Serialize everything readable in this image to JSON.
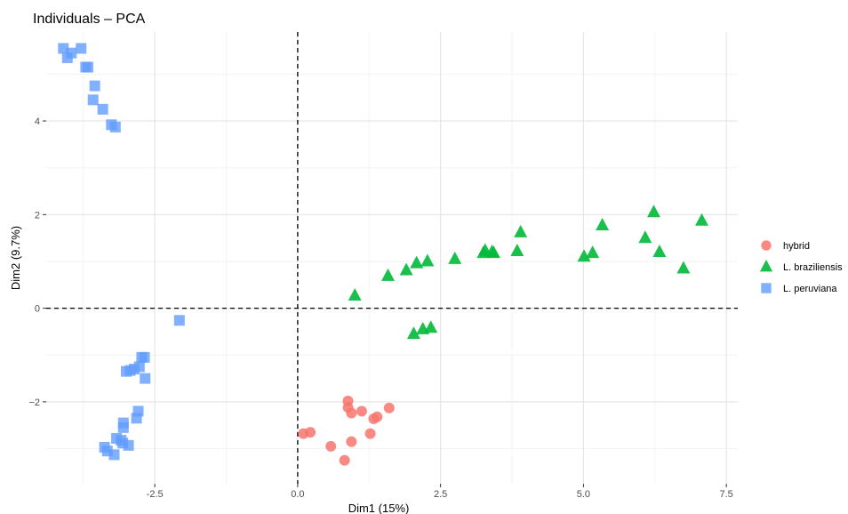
{
  "chart_data": {
    "type": "scatter",
    "title": "Individuals – PCA",
    "xlabel": "Dim1 (15%)",
    "ylabel": "Dim2 (9.7%)",
    "xlim": [
      -4.4,
      7.7
    ],
    "ylim": [
      -3.75,
      5.9
    ],
    "x_ticks": [
      0.0,
      2.5,
      5.0,
      7.5
    ],
    "x_tick_labels": [
      "0.0",
      "2.5",
      "5.0",
      "7.5"
    ],
    "extra_x_tick": {
      "value": -2.5,
      "label": "-2.5"
    },
    "y_ticks": [
      -2,
      0,
      2,
      4
    ],
    "y_tick_labels": [
      "−2",
      "0",
      "2",
      "4"
    ],
    "grid": true,
    "reference_lines": {
      "x": 0,
      "y": 0,
      "style": "dashed"
    },
    "legend": {
      "position": "right"
    },
    "series": [
      {
        "name": "hybrid",
        "marker": "circle",
        "color": "#F8766D",
        "points": [
          [
            0.1,
            -2.68
          ],
          [
            0.22,
            -2.65
          ],
          [
            0.58,
            -2.95
          ],
          [
            0.82,
            -3.25
          ],
          [
            0.88,
            -1.98
          ],
          [
            0.88,
            -2.12
          ],
          [
            0.94,
            -2.24
          ],
          [
            0.94,
            -2.85
          ],
          [
            1.12,
            -2.2
          ],
          [
            1.27,
            -2.68
          ],
          [
            1.33,
            -2.36
          ],
          [
            1.39,
            -2.32
          ],
          [
            1.6,
            -2.13
          ]
        ]
      },
      {
        "name": "L. braziliensis",
        "marker": "triangle",
        "color": "#00BA38",
        "points": [
          [
            1.0,
            0.27
          ],
          [
            1.58,
            0.69
          ],
          [
            1.9,
            0.81
          ],
          [
            2.08,
            0.96
          ],
          [
            2.27,
            1.0
          ],
          [
            2.75,
            1.05
          ],
          [
            3.25,
            1.18
          ],
          [
            3.28,
            1.23
          ],
          [
            3.4,
            1.2
          ],
          [
            3.43,
            1.18
          ],
          [
            3.84,
            1.22
          ],
          [
            3.9,
            1.62
          ],
          [
            5.01,
            1.1
          ],
          [
            5.16,
            1.18
          ],
          [
            5.33,
            1.77
          ],
          [
            6.08,
            1.5
          ],
          [
            6.23,
            2.05
          ],
          [
            6.33,
            1.2
          ],
          [
            6.75,
            0.85
          ],
          [
            7.07,
            1.87
          ],
          [
            2.03,
            -0.55
          ],
          [
            2.19,
            -0.45
          ],
          [
            2.33,
            -0.42
          ]
        ]
      },
      {
        "name": "L. peruviana",
        "marker": "square",
        "color": "#619CFF",
        "points": [
          [
            -4.1,
            5.55
          ],
          [
            -4.03,
            5.35
          ],
          [
            -3.96,
            5.45
          ],
          [
            -3.79,
            5.55
          ],
          [
            -3.71,
            5.15
          ],
          [
            -3.67,
            5.15
          ],
          [
            -3.55,
            4.75
          ],
          [
            -3.58,
            4.45
          ],
          [
            -3.41,
            4.25
          ],
          [
            -3.26,
            3.92
          ],
          [
            -3.19,
            3.87
          ],
          [
            -2.07,
            -0.26
          ],
          [
            -2.68,
            -1.05
          ],
          [
            -2.73,
            -1.05
          ],
          [
            -2.77,
            -1.25
          ],
          [
            -2.86,
            -1.3
          ],
          [
            -2.93,
            -1.33
          ],
          [
            -3.0,
            -1.35
          ],
          [
            -2.67,
            -1.5
          ],
          [
            -2.79,
            -2.2
          ],
          [
            -2.82,
            -2.35
          ],
          [
            -3.05,
            -2.45
          ],
          [
            -3.05,
            -2.55
          ],
          [
            -3.17,
            -2.78
          ],
          [
            -3.09,
            -2.82
          ],
          [
            -3.06,
            -2.88
          ],
          [
            -2.96,
            -2.93
          ],
          [
            -3.38,
            -2.97
          ],
          [
            -3.33,
            -3.05
          ],
          [
            -3.21,
            -3.13
          ]
        ]
      }
    ]
  }
}
